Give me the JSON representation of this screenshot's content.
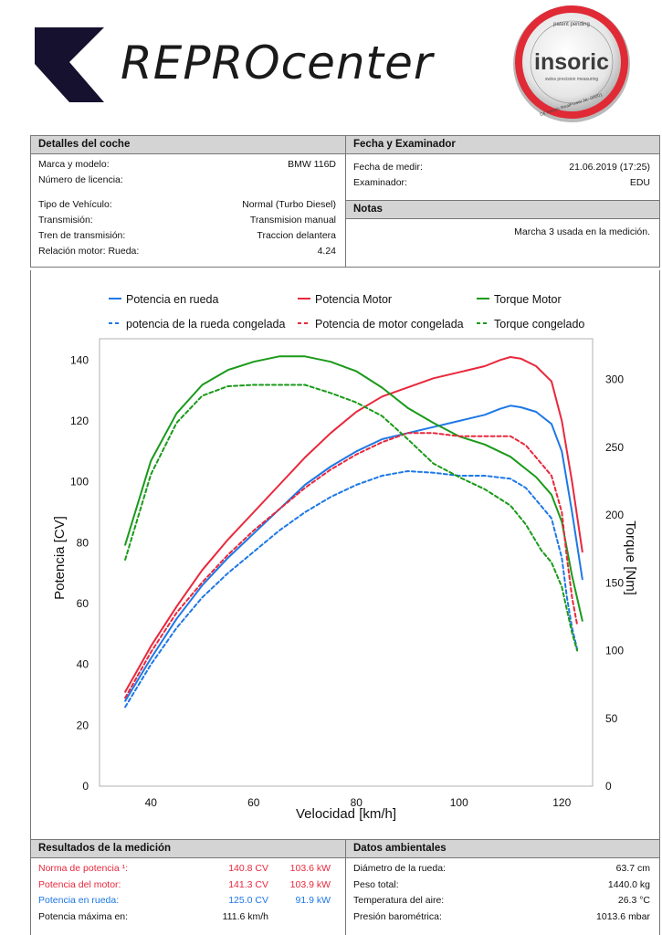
{
  "brand": {
    "name": "REPROcenter",
    "name_caps": "REPRO",
    "name_rest": "center"
  },
  "seal": {
    "name": "insoric",
    "subtitle": "swiss precision measuring",
    "top_text": "patent pending",
    "bottom_text": "C€ Insoric RealPower Nr: 00001"
  },
  "car": {
    "title": "Detalles del coche",
    "make_label": "Marca y modelo:",
    "make_value": "BMW 116D",
    "license_label": "Número de licencia:",
    "license_value": "",
    "vehicle_type_label": "Tipo de Vehículo:",
    "vehicle_type_value": "Normal (Turbo Diesel)",
    "transmission_label": "Transmisión:",
    "transmission_value": "Transmision manual",
    "drivetrain_label": "Tren de transmisión:",
    "drivetrain_value": "Traccion delantera",
    "ratio_label": "Relación motor: Rueda:",
    "ratio_value": "4.24"
  },
  "date": {
    "title": "Fecha y Examinador",
    "date_label": "Fecha de medir:",
    "date_value": "21.06.2019 (17:25)",
    "examiner_label": "Examinador:",
    "examiner_value": "EDU"
  },
  "notes": {
    "title": "Notas",
    "text": "Marcha 3 usada en la medición."
  },
  "colors": {
    "blue": "#1e78e6",
    "red": "#e8283c",
    "green": "#1a9a1a"
  },
  "chart_data": {
    "type": "line",
    "xlabel": "Velocidad [km/h]",
    "ylabel": "Potencia [CV]",
    "y2label": "Torque [Nm]",
    "xlim": [
      30,
      126
    ],
    "ylim": [
      0,
      147
    ],
    "y2lim": [
      0,
      330
    ],
    "xticks": [
      40,
      60,
      80,
      100,
      120
    ],
    "yticks": [
      0,
      20,
      40,
      60,
      80,
      100,
      120,
      140
    ],
    "y2ticks": [
      0,
      50,
      100,
      150,
      200,
      250,
      300
    ],
    "legend_position": "top",
    "series": [
      {
        "name": "Potencia en rueda",
        "axis": "left",
        "color": "#1e78e6",
        "dashed": false,
        "x": [
          35,
          40,
          45,
          50,
          55,
          60,
          65,
          70,
          75,
          80,
          85,
          90,
          95,
          100,
          105,
          108,
          110,
          112,
          115,
          118,
          120,
          122,
          124
        ],
        "y": [
          28,
          42,
          55,
          66,
          75,
          83,
          91,
          99,
          105,
          110,
          114,
          116,
          118,
          120,
          122,
          124,
          125,
          124.5,
          123,
          119,
          110,
          90,
          68
        ]
      },
      {
        "name": "Potencia Motor",
        "axis": "left",
        "color": "#e8283c",
        "dashed": false,
        "x": [
          35,
          40,
          45,
          50,
          55,
          60,
          65,
          70,
          75,
          80,
          85,
          90,
          95,
          100,
          105,
          108,
          110,
          112,
          115,
          118,
          120,
          122,
          124
        ],
        "y": [
          31,
          46,
          59,
          71,
          81,
          90,
          99,
          108,
          116,
          123,
          128,
          131,
          134,
          136,
          138,
          140,
          141,
          140.5,
          138,
          133,
          120,
          100,
          77
        ]
      },
      {
        "name": "Torque Motor",
        "axis": "right",
        "color": "#1a9a1a",
        "dashed": false,
        "x": [
          35,
          40,
          45,
          50,
          55,
          60,
          65,
          70,
          75,
          80,
          85,
          90,
          95,
          100,
          105,
          110,
          115,
          118,
          120,
          122,
          124
        ],
        "y": [
          178,
          240,
          275,
          296,
          307,
          313,
          317,
          317,
          313,
          306,
          294,
          279,
          268,
          258,
          252,
          243,
          228,
          215,
          195,
          155,
          122
        ]
      },
      {
        "name": "potencia de la rueda congelada",
        "axis": "left",
        "color": "#1e78e6",
        "dashed": true,
        "x": [
          35,
          40,
          45,
          50,
          55,
          60,
          65,
          70,
          75,
          80,
          85,
          90,
          95,
          100,
          105,
          110,
          113,
          116,
          118,
          120,
          121,
          122,
          123
        ],
        "y": [
          26,
          40,
          52,
          62,
          70,
          77,
          84,
          90,
          95,
          99,
          102,
          103.5,
          103,
          102,
          102,
          101,
          98,
          92,
          88,
          75,
          62,
          52,
          45
        ]
      },
      {
        "name": "Potencia de motor congelada",
        "axis": "left",
        "color": "#e8283c",
        "dashed": true,
        "x": [
          35,
          40,
          45,
          50,
          55,
          60,
          65,
          70,
          75,
          80,
          85,
          90,
          95,
          100,
          105,
          110,
          113,
          116,
          118,
          120,
          121,
          122,
          123
        ],
        "y": [
          29,
          44,
          57,
          67,
          76,
          84,
          91,
          98,
          104,
          109,
          113,
          116,
          116,
          115,
          115,
          115,
          112,
          106,
          102,
          90,
          75,
          62,
          53
        ]
      },
      {
        "name": "Torque congelado",
        "axis": "right",
        "color": "#1a9a1a",
        "dashed": true,
        "x": [
          35,
          40,
          45,
          50,
          55,
          60,
          65,
          70,
          75,
          80,
          85,
          90,
          95,
          100,
          105,
          110,
          113,
          116,
          118,
          120,
          121,
          122,
          123
        ],
        "y": [
          167,
          230,
          268,
          288,
          295,
          296,
          296,
          296,
          290,
          283,
          273,
          256,
          238,
          228,
          219,
          207,
          193,
          174,
          165,
          147,
          130,
          113,
          100
        ]
      }
    ]
  },
  "results": {
    "title": "Resultados de la medición",
    "rows": [
      {
        "label": "Norma de potencia ¹:",
        "cv": "140.8 CV",
        "kw": "103.6 kW",
        "color": "#e8283c"
      },
      {
        "label": "Potencia del motor:",
        "cv": "141.3 CV",
        "kw": "103.9 kW",
        "color": "#e8283c"
      },
      {
        "label": "Potencia en rueda:",
        "cv": "125.0 CV",
        "kw": "91.9 kW",
        "color": "#1e78e6"
      },
      {
        "label": "Potencia máxima en:",
        "cv": "111.6 km/h",
        "kw": "",
        "color": "#111111"
      }
    ]
  },
  "env": {
    "title": "Datos ambientales",
    "rows": [
      {
        "label": "Diámetro de la rueda:",
        "value": "63.7 cm"
      },
      {
        "label": "Peso total:",
        "value": "1440.0 kg"
      },
      {
        "label": "Temperatura del aire:",
        "value": "26.3 °C"
      },
      {
        "label": "Presión barométrica:",
        "value": "1013.6 mbar"
      }
    ]
  }
}
